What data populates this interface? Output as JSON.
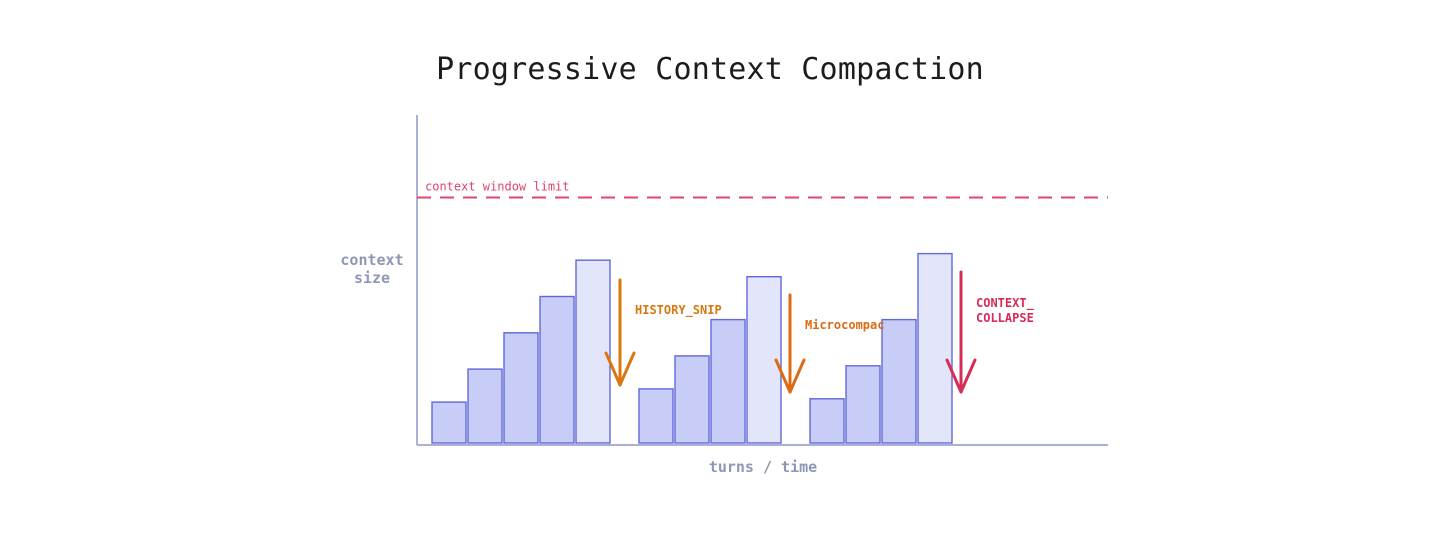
{
  "title": "Progressive Context Compaction",
  "y_axis_label": [
    "context",
    "size"
  ],
  "x_axis_label": "turns / time",
  "limit_label": "context window limit",
  "colors": {
    "axis": "#8e96c9",
    "limit_line": "#e0456b",
    "bar_fill_normal": "#c7cdf7",
    "bar_fill_peak": "#e3e6fb",
    "bar_stroke": "#6168d8",
    "snip_arrow": "#d9780f",
    "micro_arrow": "#df6a14",
    "collapse_arrow": "#d62c56",
    "axis_label_text": "#8e97b5"
  },
  "groups": [
    {
      "bars": [
        0.13,
        0.23,
        0.34,
        0.45,
        0.56
      ],
      "stage": {
        "label": [
          "HISTORY_SNIP"
        ],
        "color_key": "snip_arrow"
      }
    },
    {
      "bars": [
        0.17,
        0.27,
        0.38,
        0.51
      ],
      "stage": {
        "label": [
          "Microcompac"
        ],
        "color_key": "micro_arrow"
      }
    },
    {
      "bars": [
        0.14,
        0.24,
        0.38,
        0.58
      ],
      "stage": {
        "label": [
          "CONTEXT_",
          "COLLAPSE"
        ],
        "color_key": "collapse_arrow"
      }
    }
  ],
  "limit_level": 0.75
}
